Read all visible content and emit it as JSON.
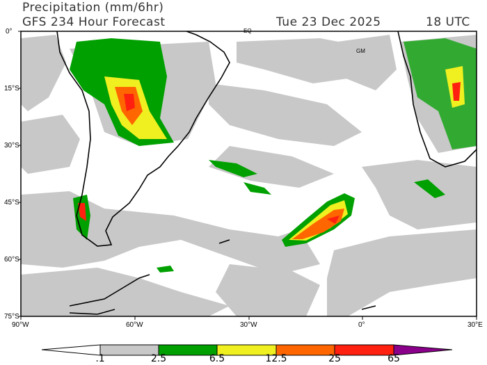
{
  "header": {
    "title": "Precipitation (mm/6hr)",
    "subtitle": "GFS 234 Hour Forecast",
    "date": "Tue 23 Dec 2025",
    "time": "18 UTC"
  },
  "axes": {
    "lat_labels": [
      "0°",
      "15°S",
      "30°S",
      "45°S",
      "60°S",
      "75°S"
    ],
    "lon_labels": [
      "90°W",
      "60°W",
      "30°W",
      "0°",
      "30°E"
    ]
  },
  "map_labels": {
    "equator": "EQ",
    "greenwich": "GM"
  },
  "colorbar": {
    "labels": [
      ".1",
      "2.5",
      "6.5",
      "12.5",
      "25",
      "65"
    ],
    "colors": [
      "#ffffff",
      "#c8c8c8",
      "#00a000",
      "#f0f020",
      "#ff6600",
      "#ff2010",
      "#8b008b"
    ]
  }
}
